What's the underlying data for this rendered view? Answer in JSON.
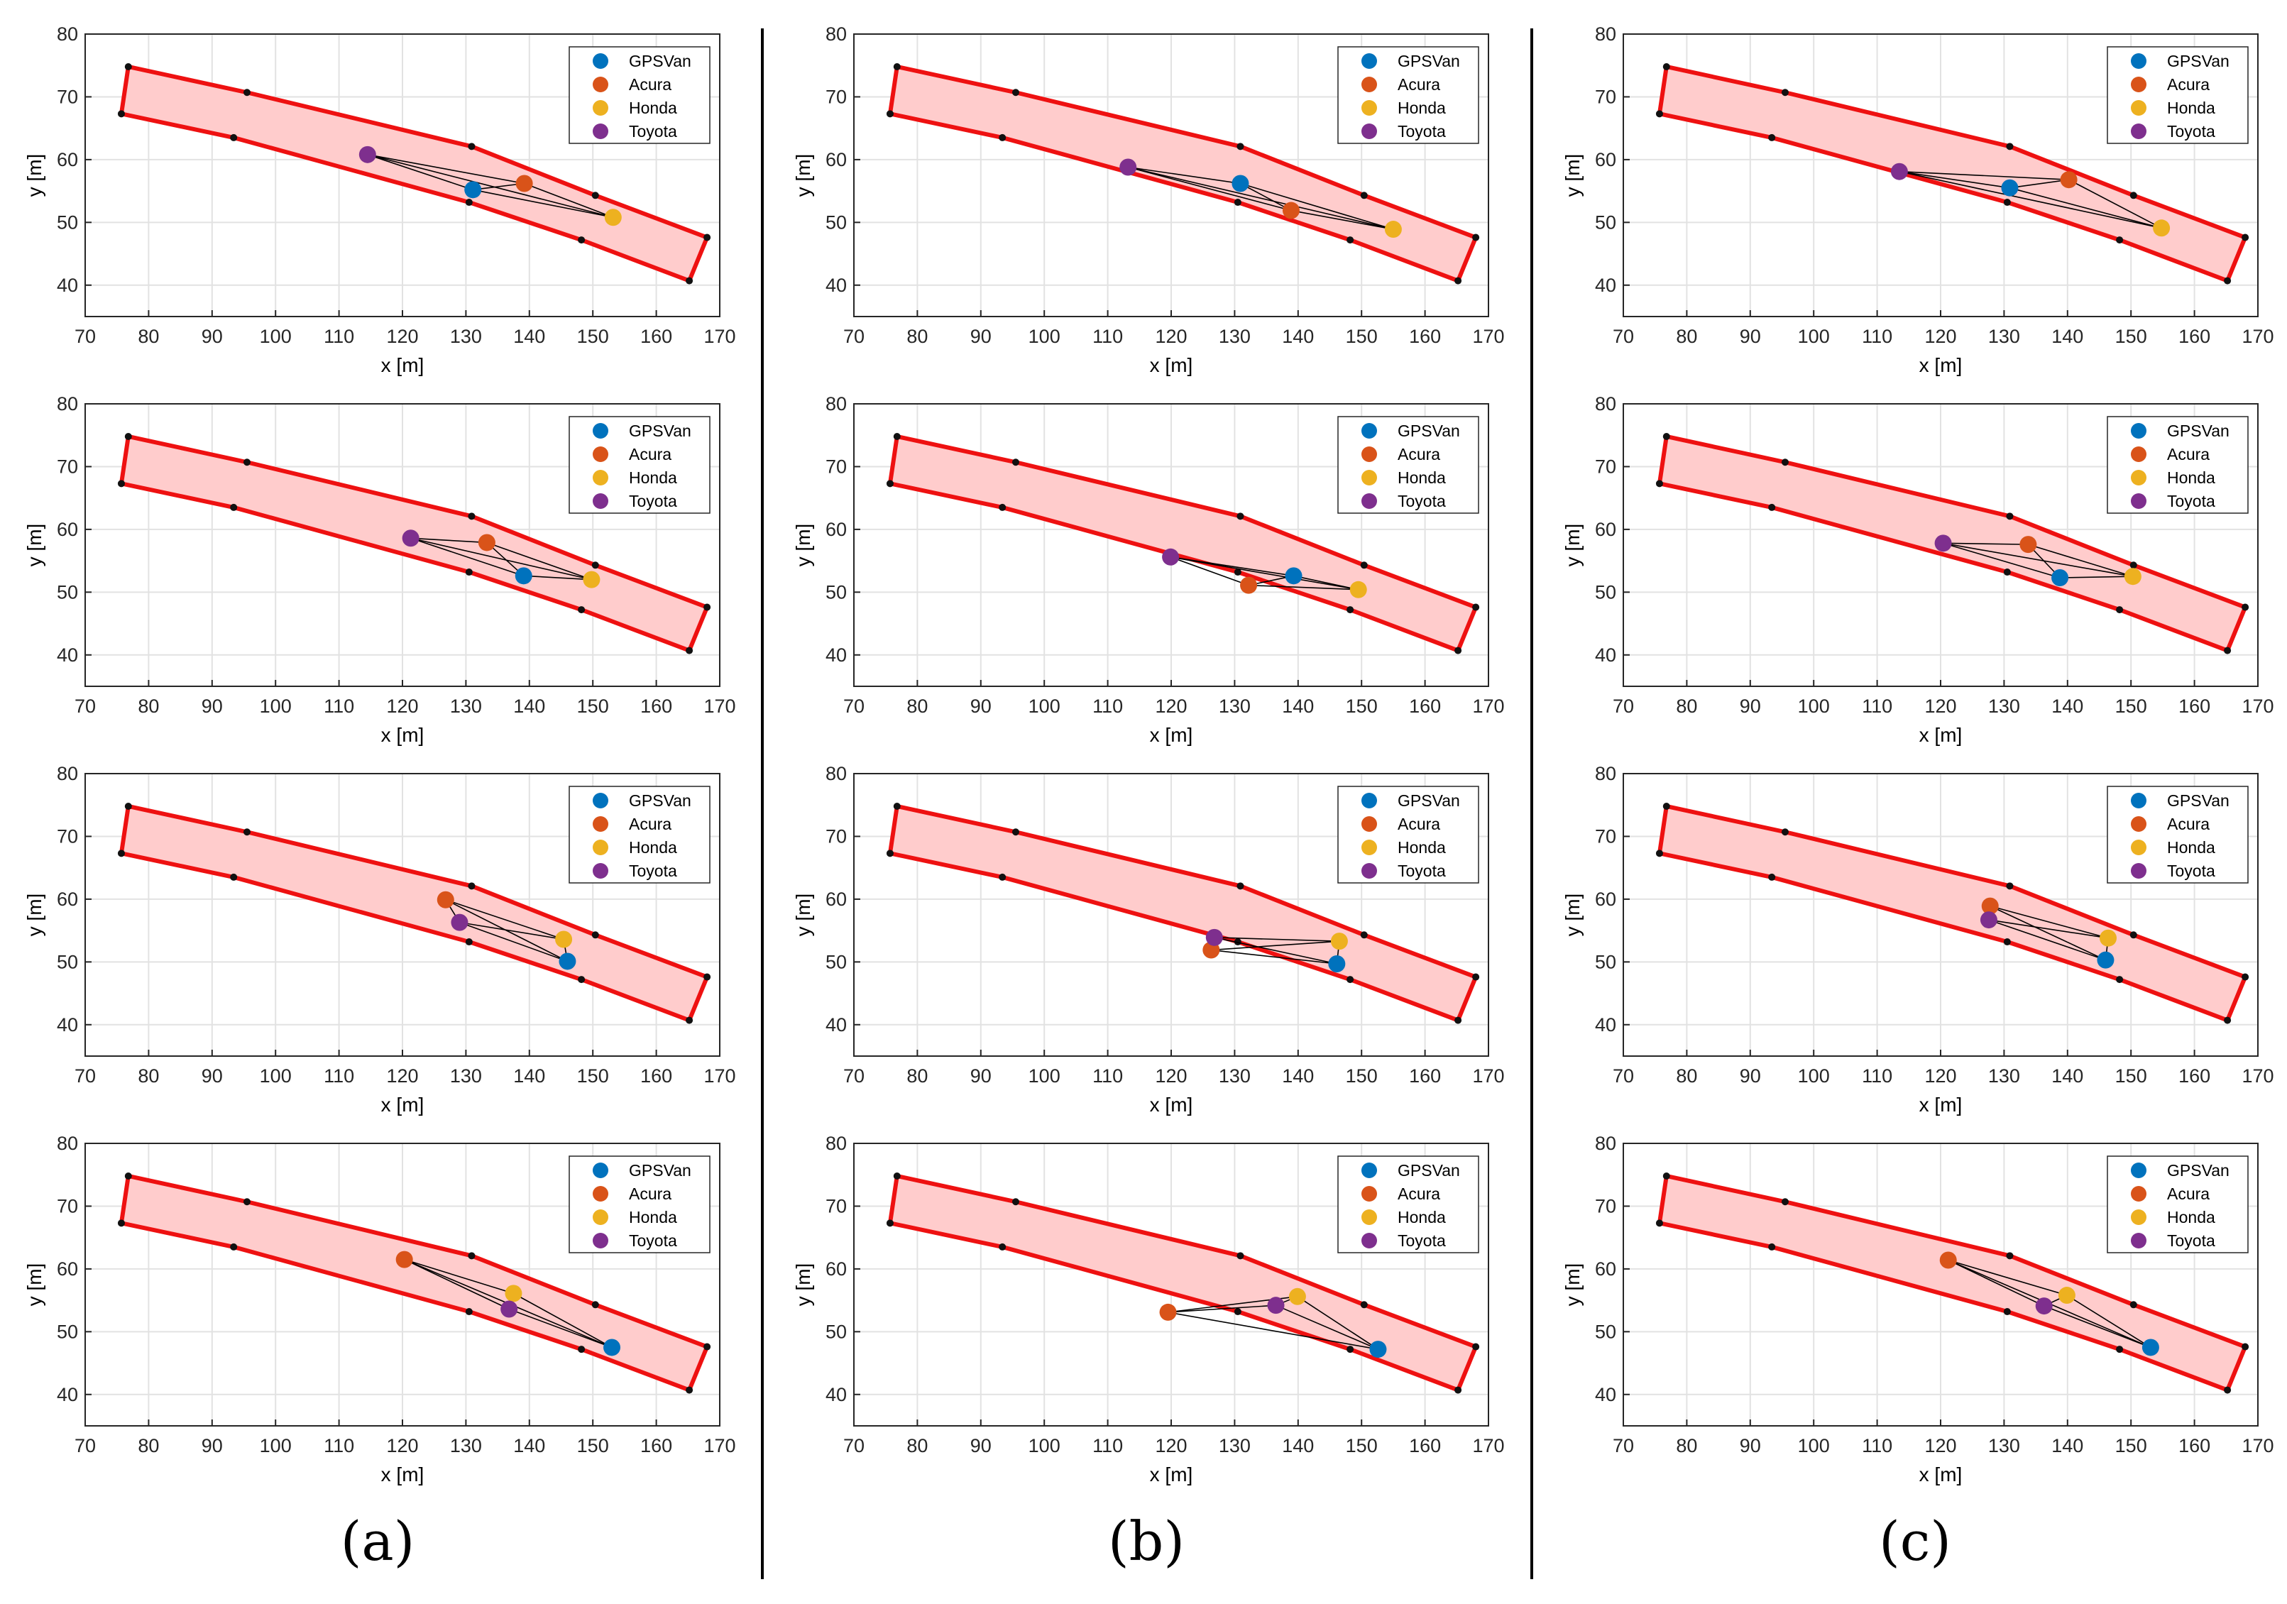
{
  "colors": {
    "gpsvan": "#0072BD",
    "acura": "#D95319",
    "honda": "#EDB120",
    "toyota": "#7E2F8E",
    "road_fill": "#ffcccc",
    "road_edge": "#ee1111",
    "link": "#000000",
    "grid": "#e2e2e2",
    "axis": "#262626"
  },
  "panel_labels": [
    "(a)",
    "(b)",
    "(c)"
  ],
  "chart_data": {
    "type": "scatter",
    "xlabel": "x [m]",
    "ylabel": "y [m]",
    "xlim": [
      70,
      170
    ],
    "ylim": [
      35,
      80
    ],
    "xticks": [
      70,
      80,
      90,
      100,
      110,
      120,
      130,
      140,
      150,
      160,
      170
    ],
    "yticks": [
      40,
      50,
      60,
      70,
      80
    ],
    "grid": true,
    "legend": {
      "placement": "top-right",
      "entries": [
        {
          "label": "GPSVan",
          "series": "gpsvan"
        },
        {
          "label": "Acura",
          "series": "acura"
        },
        {
          "label": "Honda",
          "series": "honda"
        },
        {
          "label": "Toyota",
          "series": "toyota"
        }
      ]
    },
    "road": {
      "top_edge": [
        [
          76.8,
          74.8
        ],
        [
          95.5,
          70.7
        ],
        [
          130.9,
          62.1
        ],
        [
          150.4,
          54.3
        ],
        [
          168.0,
          47.6
        ]
      ],
      "bottom_edge": [
        [
          75.7,
          67.3
        ],
        [
          93.4,
          63.5
        ],
        [
          130.5,
          53.2
        ],
        [
          148.2,
          47.2
        ],
        [
          165.2,
          40.7
        ]
      ]
    },
    "columns": [
      {
        "label": "(a)",
        "rows": [
          {
            "GPSVan": [
              131.1,
              55.2
            ],
            "Acura": [
              139.2,
              56.2
            ],
            "Honda": [
              153.2,
              50.8
            ],
            "Toyota": [
              114.5,
              60.8
            ]
          },
          {
            "GPSVan": [
              139.1,
              52.6
            ],
            "Acura": [
              133.3,
              57.9
            ],
            "Honda": [
              149.8,
              52.0
            ],
            "Toyota": [
              121.3,
              58.6
            ]
          },
          {
            "GPSVan": [
              146.0,
              50.1
            ],
            "Acura": [
              126.8,
              59.9
            ],
            "Honda": [
              145.4,
              53.6
            ],
            "Toyota": [
              129.0,
              56.3
            ]
          },
          {
            "GPSVan": [
              153.0,
              47.5
            ],
            "Acura": [
              120.3,
              61.5
            ],
            "Honda": [
              137.5,
              56.1
            ],
            "Toyota": [
              136.8,
              53.6
            ]
          }
        ]
      },
      {
        "label": "(b)",
        "rows": [
          {
            "GPSVan": [
              130.9,
              56.2
            ],
            "Acura": [
              138.9,
              51.9
            ],
            "Honda": [
              155.0,
              48.9
            ],
            "Toyota": [
              113.2,
              58.8
            ]
          },
          {
            "GPSVan": [
              139.3,
              52.6
            ],
            "Acura": [
              132.2,
              51.1
            ],
            "Honda": [
              149.5,
              50.4
            ],
            "Toyota": [
              119.9,
              55.6
            ]
          },
          {
            "GPSVan": [
              146.1,
              49.7
            ],
            "Acura": [
              126.3,
              51.9
            ],
            "Honda": [
              146.5,
              53.3
            ],
            "Toyota": [
              126.8,
              53.9
            ]
          },
          {
            "GPSVan": [
              152.6,
              47.2
            ],
            "Acura": [
              119.5,
              53.1
            ],
            "Honda": [
              139.9,
              55.6
            ],
            "Toyota": [
              136.5,
              54.2
            ]
          }
        ]
      },
      {
        "label": "(c)",
        "rows": [
          {
            "GPSVan": [
              130.9,
              55.5
            ],
            "Acura": [
              140.2,
              56.8
            ],
            "Honda": [
              154.8,
              49.1
            ],
            "Toyota": [
              113.5,
              58.1
            ]
          },
          {
            "GPSVan": [
              138.8,
              52.3
            ],
            "Acura": [
              133.8,
              57.6
            ],
            "Honda": [
              150.3,
              52.5
            ],
            "Toyota": [
              120.4,
              57.8
            ]
          },
          {
            "GPSVan": [
              146.0,
              50.3
            ],
            "Acura": [
              127.8,
              58.9
            ],
            "Honda": [
              146.4,
              53.8
            ],
            "Toyota": [
              127.6,
              56.7
            ]
          },
          {
            "GPSVan": [
              153.1,
              47.5
            ],
            "Acura": [
              121.2,
              61.4
            ],
            "Honda": [
              139.9,
              55.8
            ],
            "Toyota": [
              136.3,
              54.1
            ]
          }
        ]
      }
    ]
  }
}
